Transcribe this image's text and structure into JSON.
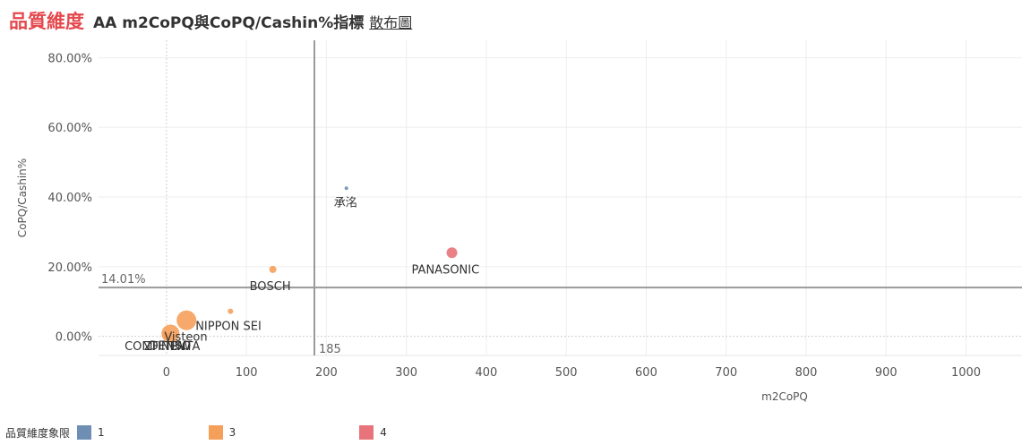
{
  "header": {
    "title": "品質維度",
    "subtitle": "AA  m2CoPQ與CoPQ/Cashin%指標",
    "link": "散布圖"
  },
  "legend": {
    "title": "品質維度象限",
    "items": [
      {
        "label": "1",
        "color": "#6e8fb3"
      },
      {
        "label": "3",
        "color": "#f5a05a"
      },
      {
        "label": "4",
        "color": "#e8737a"
      }
    ]
  },
  "chart_data": {
    "type": "scatter",
    "xlabel": "m2CoPQ",
    "ylabel": "CoPQ/Cashin%",
    "xlim": [
      -85,
      1070
    ],
    "ylim": [
      -5.5,
      85
    ],
    "x_ticks": [
      "0",
      "100",
      "200",
      "300",
      "400",
      "500",
      "600",
      "700",
      "800",
      "900",
      "1000"
    ],
    "x_tick_values": [
      0,
      100,
      200,
      300,
      400,
      500,
      600,
      700,
      800,
      900,
      1000
    ],
    "y_ticks": [
      "80.00%",
      "60.00%",
      "40.00%",
      "20.00%",
      "0.00%"
    ],
    "y_tick_values": [
      80,
      60,
      40,
      20,
      0
    ],
    "reference_lines": {
      "x": {
        "value": 185,
        "label": "185"
      },
      "y": {
        "value": 14.01,
        "label": "14.01%"
      }
    },
    "points": [
      {
        "label": "承洺",
        "x": 225,
        "y": 42.5,
        "quadrant": "1",
        "size": 2
      },
      {
        "label": "PANASONIC",
        "x": 357,
        "y": 24,
        "quadrant": "4",
        "size": 6
      },
      {
        "label": "BOSCH",
        "x": 133,
        "y": 19.2,
        "quadrant": "3",
        "size": 4
      },
      {
        "label": "",
        "x": 80,
        "y": 7.2,
        "quadrant": "3",
        "size": 3
      },
      {
        "label": "NIPPON SEI",
        "x": 25,
        "y": 4.6,
        "quadrant": "3",
        "size": 11
      },
      {
        "label": "Visteon",
        "x": 5,
        "y": 0.8,
        "quadrant": "3",
        "size": 10
      },
      {
        "label": "CONTINENTA",
        "x": -2,
        "y": 0.1,
        "quadrant": "3",
        "size": 3
      },
      {
        "label": "ZF",
        "x": 0,
        "y": 0.2,
        "quadrant": "3",
        "size": 3
      },
      {
        "label": "DENSO",
        "x": 1,
        "y": 0.3,
        "quadrant": "3",
        "size": 3
      },
      {
        "label": "TRW",
        "x": 3,
        "y": 0.2,
        "quadrant": "3",
        "size": 3
      }
    ]
  }
}
